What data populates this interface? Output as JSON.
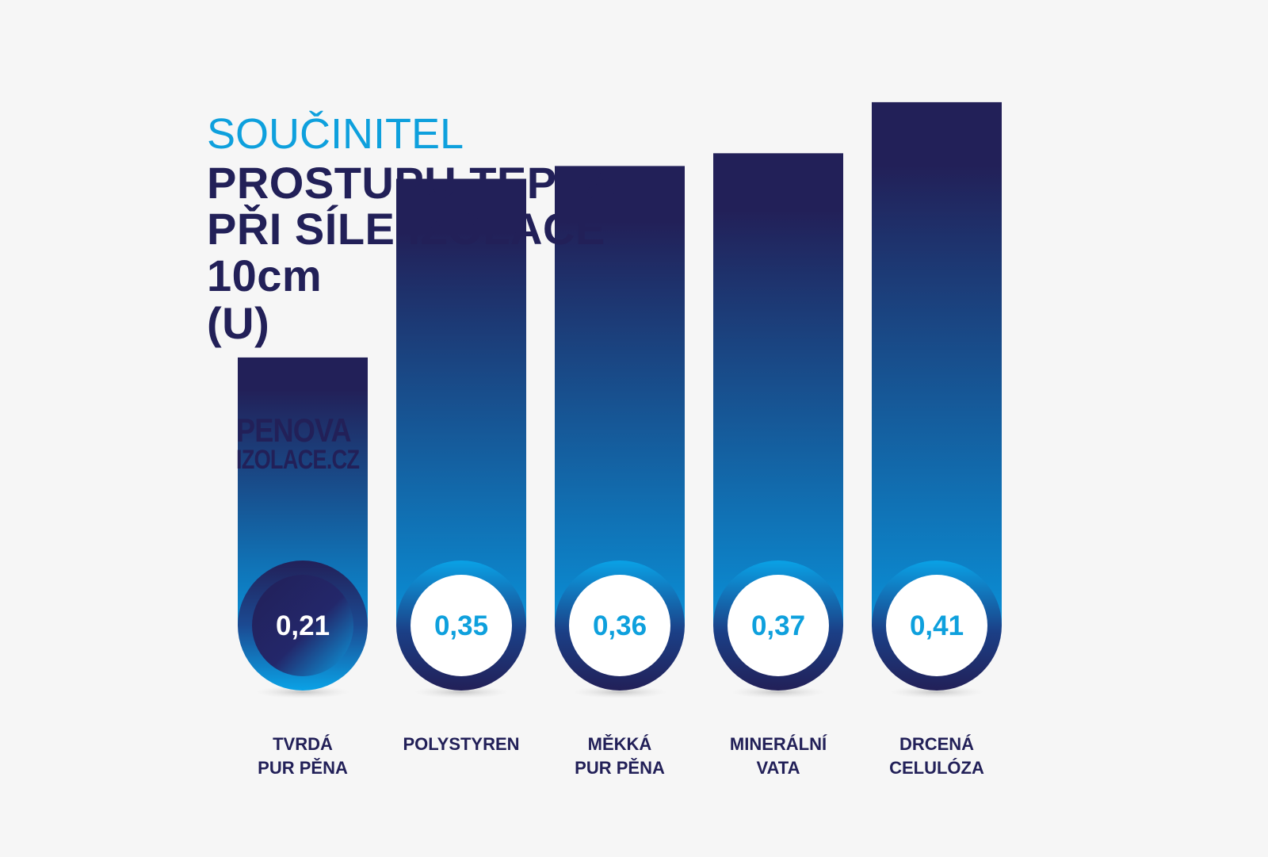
{
  "title": {
    "line1": "SOUČINITEL",
    "line2": "PROSTUPU TEPLA",
    "line3": "PŘI SÍLE IZOLACE",
    "line4": "10cm",
    "line5": "(U)"
  },
  "logo": {
    "line1": "PENOVA",
    "line2": "IZOLACE.CZ"
  },
  "colors": {
    "background": "#f6f6f6",
    "navy": "#222058",
    "blue": "#0ea0dd",
    "bar_bottom": "#0a8fd6"
  },
  "chart_data": {
    "type": "bar",
    "title": "SOUČINITEL PROSTUPU TEPLA PŘI SÍLE IZOLACE 10cm (U)",
    "categories": [
      "TVRDÁ\nPUR PĚNA",
      "POLYSTYREN",
      "MĚKKÁ\nPUR PĚNA",
      "MINERÁLNÍ\nVATA",
      "DRCENÁ\nCELULÓZA"
    ],
    "values": [
      0.21,
      0.35,
      0.36,
      0.37,
      0.41
    ],
    "value_labels": [
      "0,21",
      "0,35",
      "0,36",
      "0,37",
      "0,41"
    ],
    "highlighted_index": 0,
    "xlabel": "",
    "ylabel": "",
    "grid": false
  }
}
